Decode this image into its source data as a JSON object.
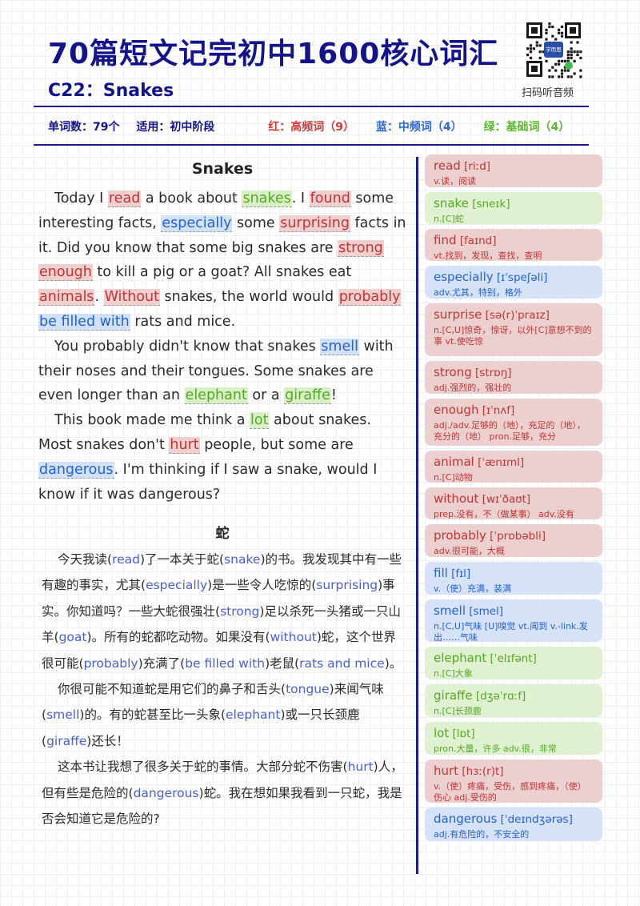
{
  "header": {
    "title": "70篇短文记完初中1600核心词汇",
    "subtitle": "C22：Snakes",
    "qr_caption": "扫码听音频",
    "qr_badge": "学而思"
  },
  "stats": {
    "word_count": "单词数：79个",
    "level": "适用：初中阶段",
    "red": "红：高频词（9）",
    "blue": "蓝：中频词（4）",
    "green": "绿：基础词（4）"
  },
  "article": {
    "title": "Snakes",
    "paragraphs": [
      [
        [
          "Today I "
        ],
        [
          "read",
          "r"
        ],
        [
          " a book about "
        ],
        [
          "snakes",
          "g"
        ],
        [
          ". I "
        ],
        [
          "found",
          "r"
        ],
        [
          " some interesting facts, "
        ],
        [
          "especially",
          "b"
        ],
        [
          " some "
        ],
        [
          "surprising",
          "r"
        ],
        [
          " facts in it. Did you know that some big snakes are "
        ],
        [
          "strong",
          "r"
        ],
        [
          " "
        ],
        [
          "enough",
          "r"
        ],
        [
          " to kill a pig or a goat? All snakes eat "
        ],
        [
          "animals",
          "r"
        ],
        [
          ". "
        ],
        [
          "Without",
          "r"
        ],
        [
          " snakes, the world would "
        ],
        [
          "probably",
          "r"
        ],
        [
          " "
        ],
        [
          "be filled with",
          "b"
        ],
        [
          " rats and mice."
        ]
      ],
      [
        [
          "You probably didn't know that snakes "
        ],
        [
          "smell",
          "b"
        ],
        [
          " with their noses and their tongues. Some snakes are even longer than an "
        ],
        [
          "elephant",
          "g"
        ],
        [
          " or a "
        ],
        [
          "giraffe",
          "g"
        ],
        [
          "!"
        ]
      ],
      [
        [
          "This book made me think a "
        ],
        [
          "lot",
          "g"
        ],
        [
          " about snakes. Most snakes don't "
        ],
        [
          "hurt",
          "r"
        ],
        [
          " people, but some are "
        ],
        [
          "dangerous",
          "b"
        ],
        [
          ". I'm thinking if I saw a snake, would I know if it was dangerous?"
        ]
      ]
    ]
  },
  "translation": {
    "title": "蛇",
    "paragraphs": [
      [
        [
          "今天我读("
        ],
        [
          "read",
          "k"
        ],
        [
          ")了一本关于蛇("
        ],
        [
          "snake",
          "k"
        ],
        [
          ")的书。我发现其中有一些有趣的事实，尤其("
        ],
        [
          "especially",
          "k"
        ],
        [
          ")是一些令人吃惊的("
        ],
        [
          "surprising",
          "k"
        ],
        [
          ")事实。你知道吗？一些大蛇很强壮("
        ],
        [
          "strong",
          "k"
        ],
        [
          ")足以杀死一头猪或一只山羊("
        ],
        [
          "goat",
          "k"
        ],
        [
          ")。所有的蛇都吃动物。如果没有("
        ],
        [
          "without",
          "k"
        ],
        [
          ")蛇，这个世界很可能("
        ],
        [
          "probably",
          "k"
        ],
        [
          ")充满了("
        ],
        [
          "be filled with",
          "k"
        ],
        [
          ")老鼠("
        ],
        [
          "rats and mice",
          "k"
        ],
        [
          ")。"
        ]
      ],
      [
        [
          "你很可能不知道蛇是用它们的鼻子和舌头("
        ],
        [
          "tongue",
          "k"
        ],
        [
          ")来闻气味("
        ],
        [
          "smell",
          "k"
        ],
        [
          ")的。有的蛇甚至比一头象("
        ],
        [
          "elephant",
          "k"
        ],
        [
          ")或一只长颈鹿("
        ],
        [
          "giraffe",
          "k"
        ],
        [
          ")还长！"
        ]
      ],
      [
        [
          "这本书让我想了很多关于蛇的事情。大部分蛇不伤害("
        ],
        [
          "hurt",
          "k"
        ],
        [
          ")人，但有些是危险的("
        ],
        [
          "dangerous",
          "k"
        ],
        [
          ")蛇。我在想如果我看到一只蛇，我是否会知道它是危险的?"
        ]
      ]
    ]
  },
  "vocab": [
    {
      "word": "read",
      "phonetic": "[riːd]",
      "def": "v.读，阅读",
      "color": "r"
    },
    {
      "word": "snake",
      "phonetic": "[sneɪk]",
      "def": "n.[C]蛇",
      "color": "g"
    },
    {
      "word": "find",
      "phonetic": "[faɪnd]",
      "def": "vt.找到，发现，查找，查明",
      "color": "r"
    },
    {
      "word": "especially",
      "phonetic": "[ɪˈspeʃəli]",
      "def": "adv.尤其，特别，格外",
      "color": "b"
    },
    {
      "word": "surprise",
      "phonetic": "[sə(r)ˈpraɪz]",
      "def": "n.[C,U]惊奇，惊讶，以外[C]意想不到的事 vt.使吃惊",
      "color": "r"
    },
    {
      "word": "strong",
      "phonetic": "[strɒŋ]",
      "def": "adj.强烈的，强壮的",
      "color": "r"
    },
    {
      "word": "enough",
      "phonetic": "[ɪˈnʌf]",
      "def": "adj./adv.足够的（地），充足的（地），充分的（地） pron.足够，充分",
      "color": "r"
    },
    {
      "word": "animal",
      "phonetic": "[ˈænɪml]",
      "def": "n.[C]动物",
      "color": "r"
    },
    {
      "word": "without",
      "phonetic": "[wɪˈðaʊt]",
      "def": "prep.没有，不（做某事） adv.没有",
      "color": "r"
    },
    {
      "word": "probably",
      "phonetic": "[ˈprɒbəbli]",
      "def": "adv.很可能，大概",
      "color": "r"
    },
    {
      "word": "fill",
      "phonetic": "[fɪl]",
      "def": "v.（使）充满，装满",
      "color": "b"
    },
    {
      "word": "smell",
      "phonetic": "[smel]",
      "def": "n.[C,U]气味 [U]嗅觉 vt.闻到 v.-link.发出……气味",
      "color": "b"
    },
    {
      "word": "elephant",
      "phonetic": "[ˈelɪfənt]",
      "def": "n.[C]大象",
      "color": "g"
    },
    {
      "word": "giraffe",
      "phonetic": "[dʒəˈrɑːf]",
      "def": "n.[C]长颈鹿",
      "color": "g"
    },
    {
      "word": "lot",
      "phonetic": "[lɒt]",
      "def": "pron.大量，许多 adv.很，非常",
      "color": "g"
    },
    {
      "word": "hurt",
      "phonetic": "[hɜː(r)t]",
      "def": "v.（使）疼痛，受伤，感到疼痛，（使）伤心 adj.受伤的",
      "color": "r"
    },
    {
      "word": "dangerous",
      "phonetic": "[ˈdeɪndʒərəs]",
      "def": "adj.有危险的，不安全的",
      "color": "b"
    }
  ]
}
